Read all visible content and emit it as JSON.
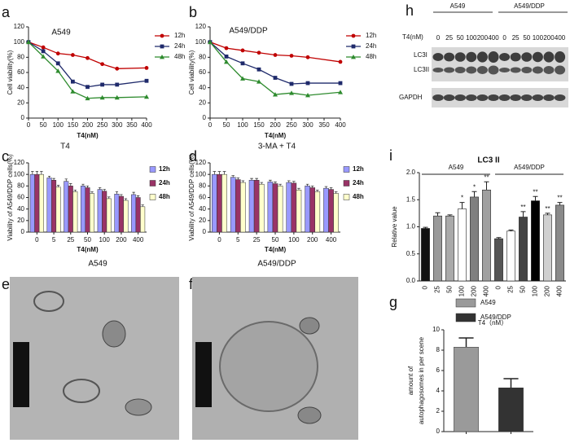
{
  "chart_data": [
    {
      "panel": "a",
      "type": "line",
      "title": "A549",
      "x_label": "T4(nM)",
      "y_label": "Cell viability(%)",
      "x": [
        0,
        50,
        100,
        150,
        200,
        250,
        300,
        400
      ],
      "xlim": [
        0,
        400
      ],
      "xticks": [
        0,
        50,
        100,
        150,
        200,
        250,
        300,
        350,
        400
      ],
      "ylim": [
        0,
        120
      ],
      "yticks": [
        0,
        20,
        40,
        60,
        80,
        100,
        120
      ],
      "series": [
        {
          "name": "12h",
          "color": "#c00000",
          "marker": "circle",
          "values": [
            100,
            93,
            85,
            83,
            79,
            71,
            65,
            66
          ]
        },
        {
          "name": "24h",
          "color": "#1f2a6b",
          "marker": "square",
          "values": [
            100,
            88,
            72,
            48,
            41,
            44,
            44,
            49
          ]
        },
        {
          "name": "48h",
          "color": "#2e8b2e",
          "marker": "triangle",
          "values": [
            100,
            81,
            62,
            35,
            26,
            27,
            27,
            28
          ]
        }
      ]
    },
    {
      "panel": "b",
      "type": "line",
      "title": "A549/DDP",
      "x_label": "T4(nM)",
      "y_label": "Cell viability(%)",
      "x": [
        0,
        50,
        100,
        150,
        200,
        250,
        300,
        400
      ],
      "xlim": [
        0,
        400
      ],
      "xticks": [
        0,
        50,
        100,
        150,
        200,
        250,
        300,
        350,
        400
      ],
      "ylim": [
        0,
        120
      ],
      "yticks": [
        0,
        20,
        40,
        60,
        80,
        100,
        120
      ],
      "series": [
        {
          "name": "12h",
          "color": "#c00000",
          "marker": "circle",
          "values": [
            100,
            92,
            89,
            86,
            83,
            82,
            80,
            74
          ]
        },
        {
          "name": "24h",
          "color": "#1f2a6b",
          "marker": "square",
          "values": [
            100,
            81,
            72,
            64,
            53,
            45,
            46,
            46
          ]
        },
        {
          "name": "48h",
          "color": "#2e8b2e",
          "marker": "triangle",
          "values": [
            100,
            74,
            52,
            48,
            31,
            33,
            30,
            34
          ]
        }
      ]
    },
    {
      "panel": "c",
      "type": "grouped_bar",
      "title": "T4",
      "x_label": "T4(nM)",
      "y_label": "Viability of A549/DDP cells(%)",
      "categories": [
        "0",
        "5",
        "25",
        "50",
        "100",
        "200",
        "400"
      ],
      "ylim": [
        0,
        120
      ],
      "yticks": [
        0,
        20,
        40,
        60,
        80,
        100,
        120
      ],
      "series": [
        {
          "name": "12h",
          "color": "#9999ff",
          "values": [
            100,
            94,
            88,
            80,
            74,
            66,
            65
          ],
          "errors": [
            5,
            3,
            4,
            3,
            3,
            4,
            4
          ]
        },
        {
          "name": "24h",
          "color": "#993366",
          "values": [
            100,
            90,
            80,
            77,
            71,
            62,
            60
          ],
          "errors": [
            5,
            3,
            4,
            3,
            3,
            3,
            3
          ]
        },
        {
          "name": "48h",
          "color": "#ffffcc",
          "values": [
            100,
            78,
            70,
            67,
            58,
            55,
            44
          ],
          "errors": [
            5,
            3,
            3,
            3,
            3,
            3,
            3
          ]
        }
      ]
    },
    {
      "panel": "d",
      "type": "grouped_bar",
      "title": "3-MA + T4",
      "x_label": "T4(nM)",
      "y_label": "Viability of A549/DDP cells(%)",
      "categories": [
        "0",
        "5",
        "25",
        "50",
        "100",
        "200",
        "400"
      ],
      "ylim": [
        0,
        120
      ],
      "yticks": [
        0,
        20,
        40,
        60,
        80,
        100,
        120
      ],
      "series": [
        {
          "name": "12h",
          "color": "#9999ff",
          "values": [
            100,
            95,
            90,
            87,
            86,
            80,
            76
          ],
          "errors": [
            5,
            3,
            3,
            3,
            3,
            3,
            3
          ]
        },
        {
          "name": "24h",
          "color": "#993366",
          "values": [
            100,
            91,
            90,
            84,
            85,
            77,
            74
          ],
          "errors": [
            5,
            3,
            3,
            3,
            3,
            3,
            3
          ]
        },
        {
          "name": "48h",
          "color": "#ffffcc",
          "values": [
            100,
            86,
            83,
            80,
            73,
            70,
            67
          ],
          "errors": [
            5,
            3,
            3,
            3,
            3,
            3,
            3
          ]
        }
      ]
    },
    {
      "panel": "i",
      "type": "bar",
      "title": "LC3 II",
      "x_label": "T4（nM）",
      "y_label": "Relative value",
      "categories": [
        "0",
        "25",
        "50",
        "100",
        "200",
        "400",
        "0",
        "25",
        "50",
        "100",
        "200",
        "400"
      ],
      "groups": [
        "A549",
        "A549/DDP"
      ],
      "ylim": [
        0,
        2
      ],
      "yticks": [
        {
          "value": 0,
          "label": "0.0"
        },
        0.5,
        {
          "value": 1,
          "label": "1.0"
        },
        1.5,
        {
          "value": 2,
          "label": "2.0"
        }
      ],
      "values": [
        0.97,
        1.2,
        1.2,
        1.33,
        1.55,
        1.68,
        0.78,
        0.92,
        1.18,
        1.48,
        1.22,
        1.4
      ],
      "errors": [
        0.02,
        0.06,
        0.02,
        0.12,
        0.1,
        0.15,
        0.02,
        0.02,
        0.1,
        0.08,
        0.03,
        0.05
      ],
      "colors": [
        "#111111",
        "#999999",
        "#aaaaaa",
        "#ffffff",
        "#808080",
        "#a0a0a0",
        "#555555",
        "#ffffff",
        "#444444",
        "#000000",
        "#d0d0d0",
        "#8a8a8a"
      ],
      "significance": [
        null,
        null,
        null,
        "*",
        "*",
        "**",
        null,
        null,
        "**",
        "**",
        "**",
        "**"
      ]
    },
    {
      "panel": "g",
      "type": "grouped_bar",
      "y_label": [
        "amount of",
        "autophagosomes in per scene"
      ],
      "categories": [
        null,
        null
      ],
      "ylim": [
        0,
        10
      ],
      "yticks": [
        0,
        2,
        4,
        6,
        8,
        10
      ],
      "series": [
        {
          "name": "A549",
          "color": "#9a9a9a",
          "values": [
            8.3,
            null
          ],
          "errors": [
            0.9,
            null
          ]
        },
        {
          "name": "A549/DDP",
          "color": "#333333",
          "values": [
            null,
            4.3
          ],
          "errors": [
            null,
            0.9
          ]
        }
      ]
    }
  ],
  "blot": {
    "panel": "h",
    "groups": [
      "A549",
      "A549/DDP"
    ],
    "dose_label": "T4(nM)",
    "doses": [
      "0",
      "25",
      "50",
      "100",
      "200",
      "400",
      "0",
      "25",
      "50",
      "100",
      "200",
      "400"
    ],
    "bands": [
      "LC3I",
      "LC3II",
      "GAPDH"
    ]
  },
  "micrographs": [
    {
      "panel": "e",
      "title": "A549"
    },
    {
      "panel": "f",
      "title": "A549/DDP"
    }
  ]
}
